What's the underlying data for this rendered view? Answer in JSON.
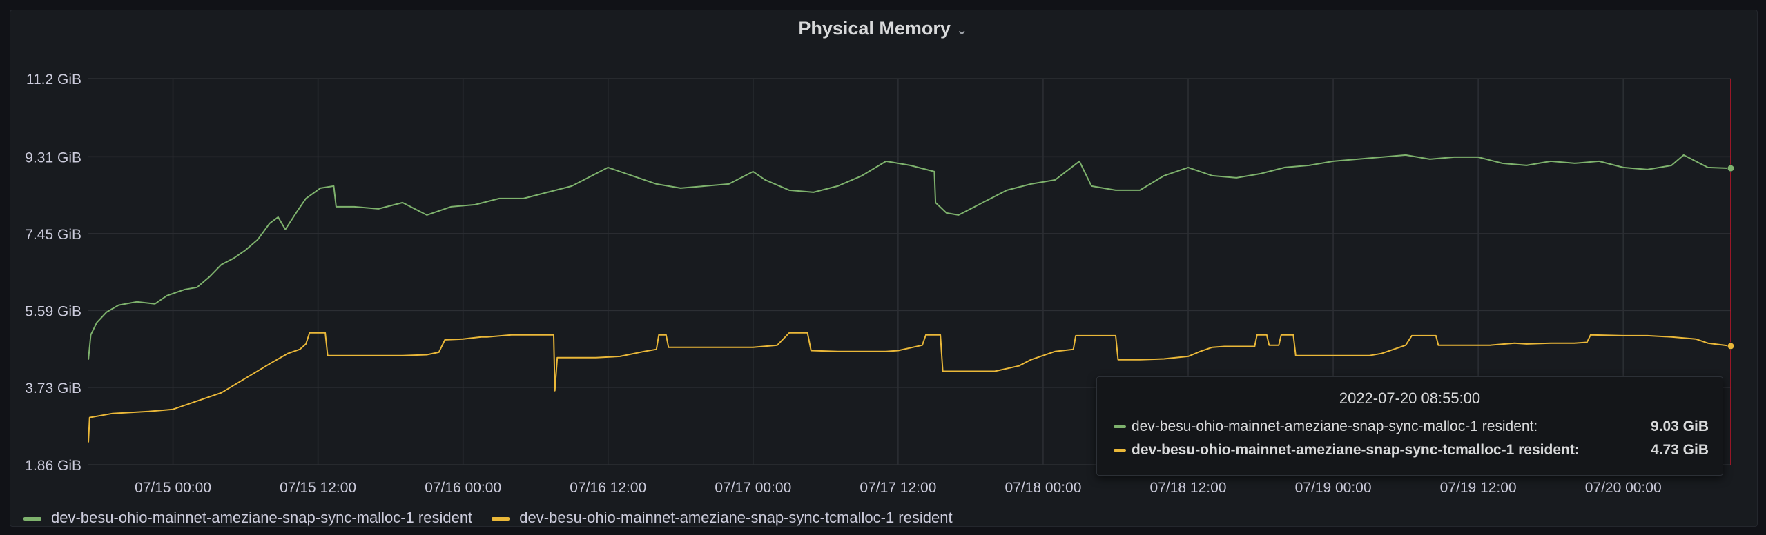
{
  "panel": {
    "title": "Physical Memory",
    "title_menu_icon": "chevron-down-icon"
  },
  "colors": {
    "malloc": "#7eb26d",
    "tcmalloc": "#eab839",
    "grid": "#2c2f34",
    "hover_line": "#c4162a"
  },
  "tooltip": {
    "time": "2022-07-20 08:55:00",
    "rows": [
      {
        "name": "dev-besu-ohio-mainnet-ameziane-snap-sync-malloc-1 resident:",
        "value": "9.03 GiB"
      },
      {
        "name": "dev-besu-ohio-mainnet-ameziane-snap-sync-tcmalloc-1 resident:",
        "value": "4.73 GiB"
      }
    ]
  },
  "chart_data": {
    "type": "line",
    "y_tick_labels": [
      "1.86 GiB",
      "3.73 GiB",
      "5.59 GiB",
      "7.45 GiB",
      "9.31 GiB",
      "11.2 GiB"
    ],
    "y_ticks": [
      1.86,
      3.73,
      5.59,
      7.45,
      9.31,
      11.2
    ],
    "ylim": [
      1.86,
      11.2
    ],
    "x_tick_labels": [
      "07/15 00:00",
      "07/15 12:00",
      "07/16 00:00",
      "07/16 12:00",
      "07/17 00:00",
      "07/17 12:00",
      "07/18 00:00",
      "07/18 12:00",
      "07/19 00:00",
      "07/19 12:00",
      "07/20 00:00"
    ],
    "x_ticks_hours": [
      0,
      12,
      24,
      36,
      48,
      60,
      72,
      84,
      96,
      108,
      120
    ],
    "xlim_hours": [
      -7,
      128.9
    ],
    "legend_position": "bottom-left",
    "series": [
      {
        "name": "dev-besu-ohio-mainnet-ameziane-snap-sync-malloc-1 resident",
        "points": [
          [
            -7,
            4.4
          ],
          [
            -6.8,
            5.0
          ],
          [
            -6.3,
            5.3
          ],
          [
            -5.5,
            5.55
          ],
          [
            -4.5,
            5.72
          ],
          [
            -3,
            5.8
          ],
          [
            -1.5,
            5.75
          ],
          [
            -0.5,
            5.95
          ],
          [
            1,
            6.1
          ],
          [
            2,
            6.15
          ],
          [
            3,
            6.4
          ],
          [
            4,
            6.7
          ],
          [
            5,
            6.85
          ],
          [
            6,
            7.05
          ],
          [
            7,
            7.3
          ],
          [
            8,
            7.7
          ],
          [
            8.7,
            7.85
          ],
          [
            9.3,
            7.55
          ],
          [
            10.3,
            8.0
          ],
          [
            11,
            8.3
          ],
          [
            12.2,
            8.55
          ],
          [
            13.3,
            8.6
          ],
          [
            13.5,
            8.1
          ],
          [
            15,
            8.1
          ],
          [
            17,
            8.05
          ],
          [
            19,
            8.2
          ],
          [
            21,
            7.9
          ],
          [
            23,
            8.1
          ],
          [
            25,
            8.15
          ],
          [
            27,
            8.3
          ],
          [
            29,
            8.3
          ],
          [
            31,
            8.45
          ],
          [
            33,
            8.6
          ],
          [
            35,
            8.9
          ],
          [
            36,
            9.05
          ],
          [
            38,
            8.85
          ],
          [
            40,
            8.65
          ],
          [
            42,
            8.55
          ],
          [
            44,
            8.6
          ],
          [
            46,
            8.65
          ],
          [
            48,
            8.95
          ],
          [
            49,
            8.75
          ],
          [
            51,
            8.5
          ],
          [
            53,
            8.45
          ],
          [
            55,
            8.6
          ],
          [
            57,
            8.85
          ],
          [
            59,
            9.2
          ],
          [
            61,
            9.1
          ],
          [
            63,
            8.95
          ],
          [
            63.1,
            8.2
          ],
          [
            64,
            7.95
          ],
          [
            65,
            7.9
          ],
          [
            67,
            8.2
          ],
          [
            69,
            8.5
          ],
          [
            71,
            8.65
          ],
          [
            73,
            8.75
          ],
          [
            75,
            9.2
          ],
          [
            76,
            8.6
          ],
          [
            78,
            8.5
          ],
          [
            80,
            8.5
          ],
          [
            82,
            8.85
          ],
          [
            84,
            9.05
          ],
          [
            86,
            8.85
          ],
          [
            88,
            8.8
          ],
          [
            90,
            8.9
          ],
          [
            92,
            9.05
          ],
          [
            94,
            9.1
          ],
          [
            96,
            9.2
          ],
          [
            98,
            9.25
          ],
          [
            100,
            9.3
          ],
          [
            102,
            9.35
          ],
          [
            104,
            9.25
          ],
          [
            106,
            9.3
          ],
          [
            108,
            9.3
          ],
          [
            110,
            9.15
          ],
          [
            112,
            9.1
          ],
          [
            114,
            9.2
          ],
          [
            116,
            9.15
          ],
          [
            118,
            9.2
          ],
          [
            120,
            9.05
          ],
          [
            122,
            9.0
          ],
          [
            124,
            9.1
          ],
          [
            125,
            9.35
          ],
          [
            126,
            9.2
          ],
          [
            127,
            9.05
          ],
          [
            128.9,
            9.03
          ]
        ]
      },
      {
        "name": "dev-besu-ohio-mainnet-ameziane-snap-sync-tcmalloc-1 resident",
        "points": [
          [
            -7,
            2.4
          ],
          [
            -6.9,
            3.0
          ],
          [
            -5,
            3.1
          ],
          [
            -2,
            3.15
          ],
          [
            0,
            3.2
          ],
          [
            2,
            3.4
          ],
          [
            4,
            3.6
          ],
          [
            6,
            3.95
          ],
          [
            8,
            4.3
          ],
          [
            9.5,
            4.55
          ],
          [
            10.5,
            4.65
          ],
          [
            11,
            4.78
          ],
          [
            11.3,
            5.05
          ],
          [
            12.6,
            5.05
          ],
          [
            12.8,
            4.5
          ],
          [
            15,
            4.5
          ],
          [
            17,
            4.5
          ],
          [
            19,
            4.5
          ],
          [
            21,
            4.52
          ],
          [
            22,
            4.58
          ],
          [
            22.5,
            4.88
          ],
          [
            24,
            4.9
          ],
          [
            25.5,
            4.95
          ],
          [
            26,
            4.95
          ],
          [
            28,
            5.0
          ],
          [
            30,
            5.0
          ],
          [
            31.5,
            5.0
          ],
          [
            31.6,
            3.65
          ],
          [
            31.8,
            4.45
          ],
          [
            33,
            4.45
          ],
          [
            35,
            4.45
          ],
          [
            37,
            4.48
          ],
          [
            39,
            4.6
          ],
          [
            40,
            4.65
          ],
          [
            40.2,
            5.0
          ],
          [
            40.8,
            5.0
          ],
          [
            41,
            4.7
          ],
          [
            43,
            4.7
          ],
          [
            45,
            4.7
          ],
          [
            47,
            4.7
          ],
          [
            48,
            4.7
          ],
          [
            50,
            4.75
          ],
          [
            51,
            5.05
          ],
          [
            52.5,
            5.05
          ],
          [
            52.8,
            4.62
          ],
          [
            55,
            4.6
          ],
          [
            57,
            4.6
          ],
          [
            59,
            4.6
          ],
          [
            60,
            4.62
          ],
          [
            62,
            4.75
          ],
          [
            62.3,
            5.0
          ],
          [
            63.5,
            5.0
          ],
          [
            63.7,
            4.12
          ],
          [
            66,
            4.12
          ],
          [
            68,
            4.12
          ],
          [
            70,
            4.25
          ],
          [
            71,
            4.4
          ],
          [
            72,
            4.5
          ],
          [
            73,
            4.6
          ],
          [
            74.5,
            4.65
          ],
          [
            74.7,
            4.98
          ],
          [
            76,
            4.98
          ],
          [
            78,
            4.98
          ],
          [
            78.2,
            4.4
          ],
          [
            80,
            4.4
          ],
          [
            82,
            4.42
          ],
          [
            84,
            4.48
          ],
          [
            85,
            4.6
          ],
          [
            86,
            4.7
          ],
          [
            87,
            4.72
          ],
          [
            88,
            4.72
          ],
          [
            89.5,
            4.72
          ],
          [
            89.7,
            5.0
          ],
          [
            90.5,
            5.0
          ],
          [
            90.7,
            4.75
          ],
          [
            91.5,
            4.75
          ],
          [
            91.7,
            5.0
          ],
          [
            92.7,
            5.0
          ],
          [
            92.9,
            4.5
          ],
          [
            95,
            4.5
          ],
          [
            97,
            4.5
          ],
          [
            99,
            4.5
          ],
          [
            100,
            4.55
          ],
          [
            101,
            4.65
          ],
          [
            102,
            4.75
          ],
          [
            102.5,
            4.98
          ],
          [
            104.5,
            4.98
          ],
          [
            104.7,
            4.75
          ],
          [
            107,
            4.75
          ],
          [
            109,
            4.75
          ],
          [
            111,
            4.8
          ],
          [
            112,
            4.78
          ],
          [
            114,
            4.8
          ],
          [
            116,
            4.8
          ],
          [
            117,
            4.82
          ],
          [
            117.3,
            5.0
          ],
          [
            120,
            4.98
          ],
          [
            122,
            4.98
          ],
          [
            124,
            4.95
          ],
          [
            126,
            4.9
          ],
          [
            127,
            4.8
          ],
          [
            128.9,
            4.73
          ]
        ]
      }
    ],
    "hover": {
      "time": "2022-07-20 08:55:00",
      "x_hours": 128.9,
      "values": [
        9.03,
        4.73
      ]
    }
  },
  "legend": {
    "items": [
      "dev-besu-ohio-mainnet-ameziane-snap-sync-malloc-1 resident",
      "dev-besu-ohio-mainnet-ameziane-snap-sync-tcmalloc-1 resident"
    ]
  }
}
